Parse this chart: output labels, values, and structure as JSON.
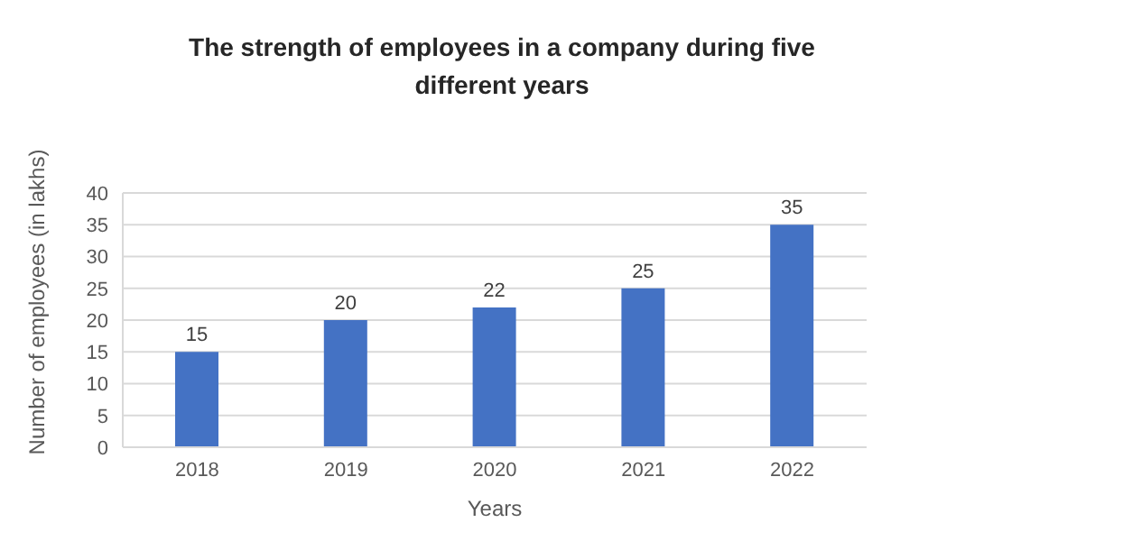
{
  "chart_data": {
    "type": "bar",
    "title": "The strength of employees in a company during five different years",
    "xlabel": "Years",
    "ylabel": "Number of employees (in lakhs)",
    "categories": [
      "2018",
      "2019",
      "2020",
      "2021",
      "2022"
    ],
    "values": [
      15,
      20,
      22,
      25,
      35
    ],
    "color": "#4472c4",
    "ylim": [
      0,
      40
    ],
    "yticks": [
      0,
      5,
      10,
      15,
      20,
      25,
      30,
      35,
      40
    ],
    "grid": "y",
    "data_labels": true
  }
}
